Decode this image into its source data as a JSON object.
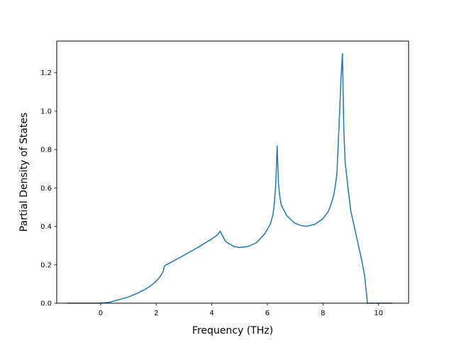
{
  "chart_data": {
    "type": "line",
    "title": "",
    "xlabel": "Frequency (THz)",
    "ylabel": "Partial Density of States",
    "xlim": [
      -1.58,
      11.08
    ],
    "ylim": [
      0.0,
      1.365
    ],
    "xticks": [
      0,
      2,
      4,
      6,
      8,
      10
    ],
    "yticks": [
      0.0,
      0.2,
      0.4,
      0.6,
      0.8,
      1.0,
      1.2
    ],
    "xtick_labels": [
      "0",
      "2",
      "4",
      "6",
      "8",
      "10"
    ],
    "ytick_labels": [
      "0.0",
      "0.2",
      "0.4",
      "0.6",
      "0.8",
      "1.0",
      "1.2"
    ],
    "grid": false,
    "legend": null,
    "line_color": "#1f77b4",
    "series": [
      {
        "x": [
          -1.2,
          -0.5,
          0.0,
          0.3,
          0.5,
          0.7,
          1.0,
          1.3,
          1.6,
          1.8,
          2.0,
          2.15,
          2.25,
          2.3,
          2.5,
          3.0,
          3.5,
          4.0,
          4.2,
          4.3,
          4.5,
          4.8,
          5.0,
          5.3,
          5.6,
          5.9,
          6.1,
          6.2,
          6.25,
          6.3,
          6.35,
          6.4,
          6.45,
          6.5,
          6.7,
          7.0,
          7.2,
          7.4,
          7.7,
          8.0,
          8.2,
          8.3,
          8.4,
          8.5,
          8.6,
          8.65,
          8.7,
          8.75,
          8.8,
          8.9,
          9.0,
          9.2,
          9.4,
          9.5,
          9.55,
          9.6,
          10.0,
          10.5
        ],
        "y": [
          0.0,
          0.0,
          0.0,
          0.004,
          0.012,
          0.02,
          0.032,
          0.05,
          0.072,
          0.09,
          0.115,
          0.14,
          0.165,
          0.195,
          0.21,
          0.25,
          0.29,
          0.335,
          0.355,
          0.375,
          0.32,
          0.295,
          0.29,
          0.295,
          0.315,
          0.36,
          0.41,
          0.46,
          0.52,
          0.62,
          0.82,
          0.62,
          0.55,
          0.51,
          0.455,
          0.415,
          0.405,
          0.4,
          0.41,
          0.44,
          0.48,
          0.52,
          0.57,
          0.67,
          1.0,
          1.18,
          1.3,
          0.9,
          0.73,
          0.6,
          0.48,
          0.35,
          0.22,
          0.14,
          0.07,
          0.0,
          0.0,
          0.0
        ]
      }
    ]
  }
}
